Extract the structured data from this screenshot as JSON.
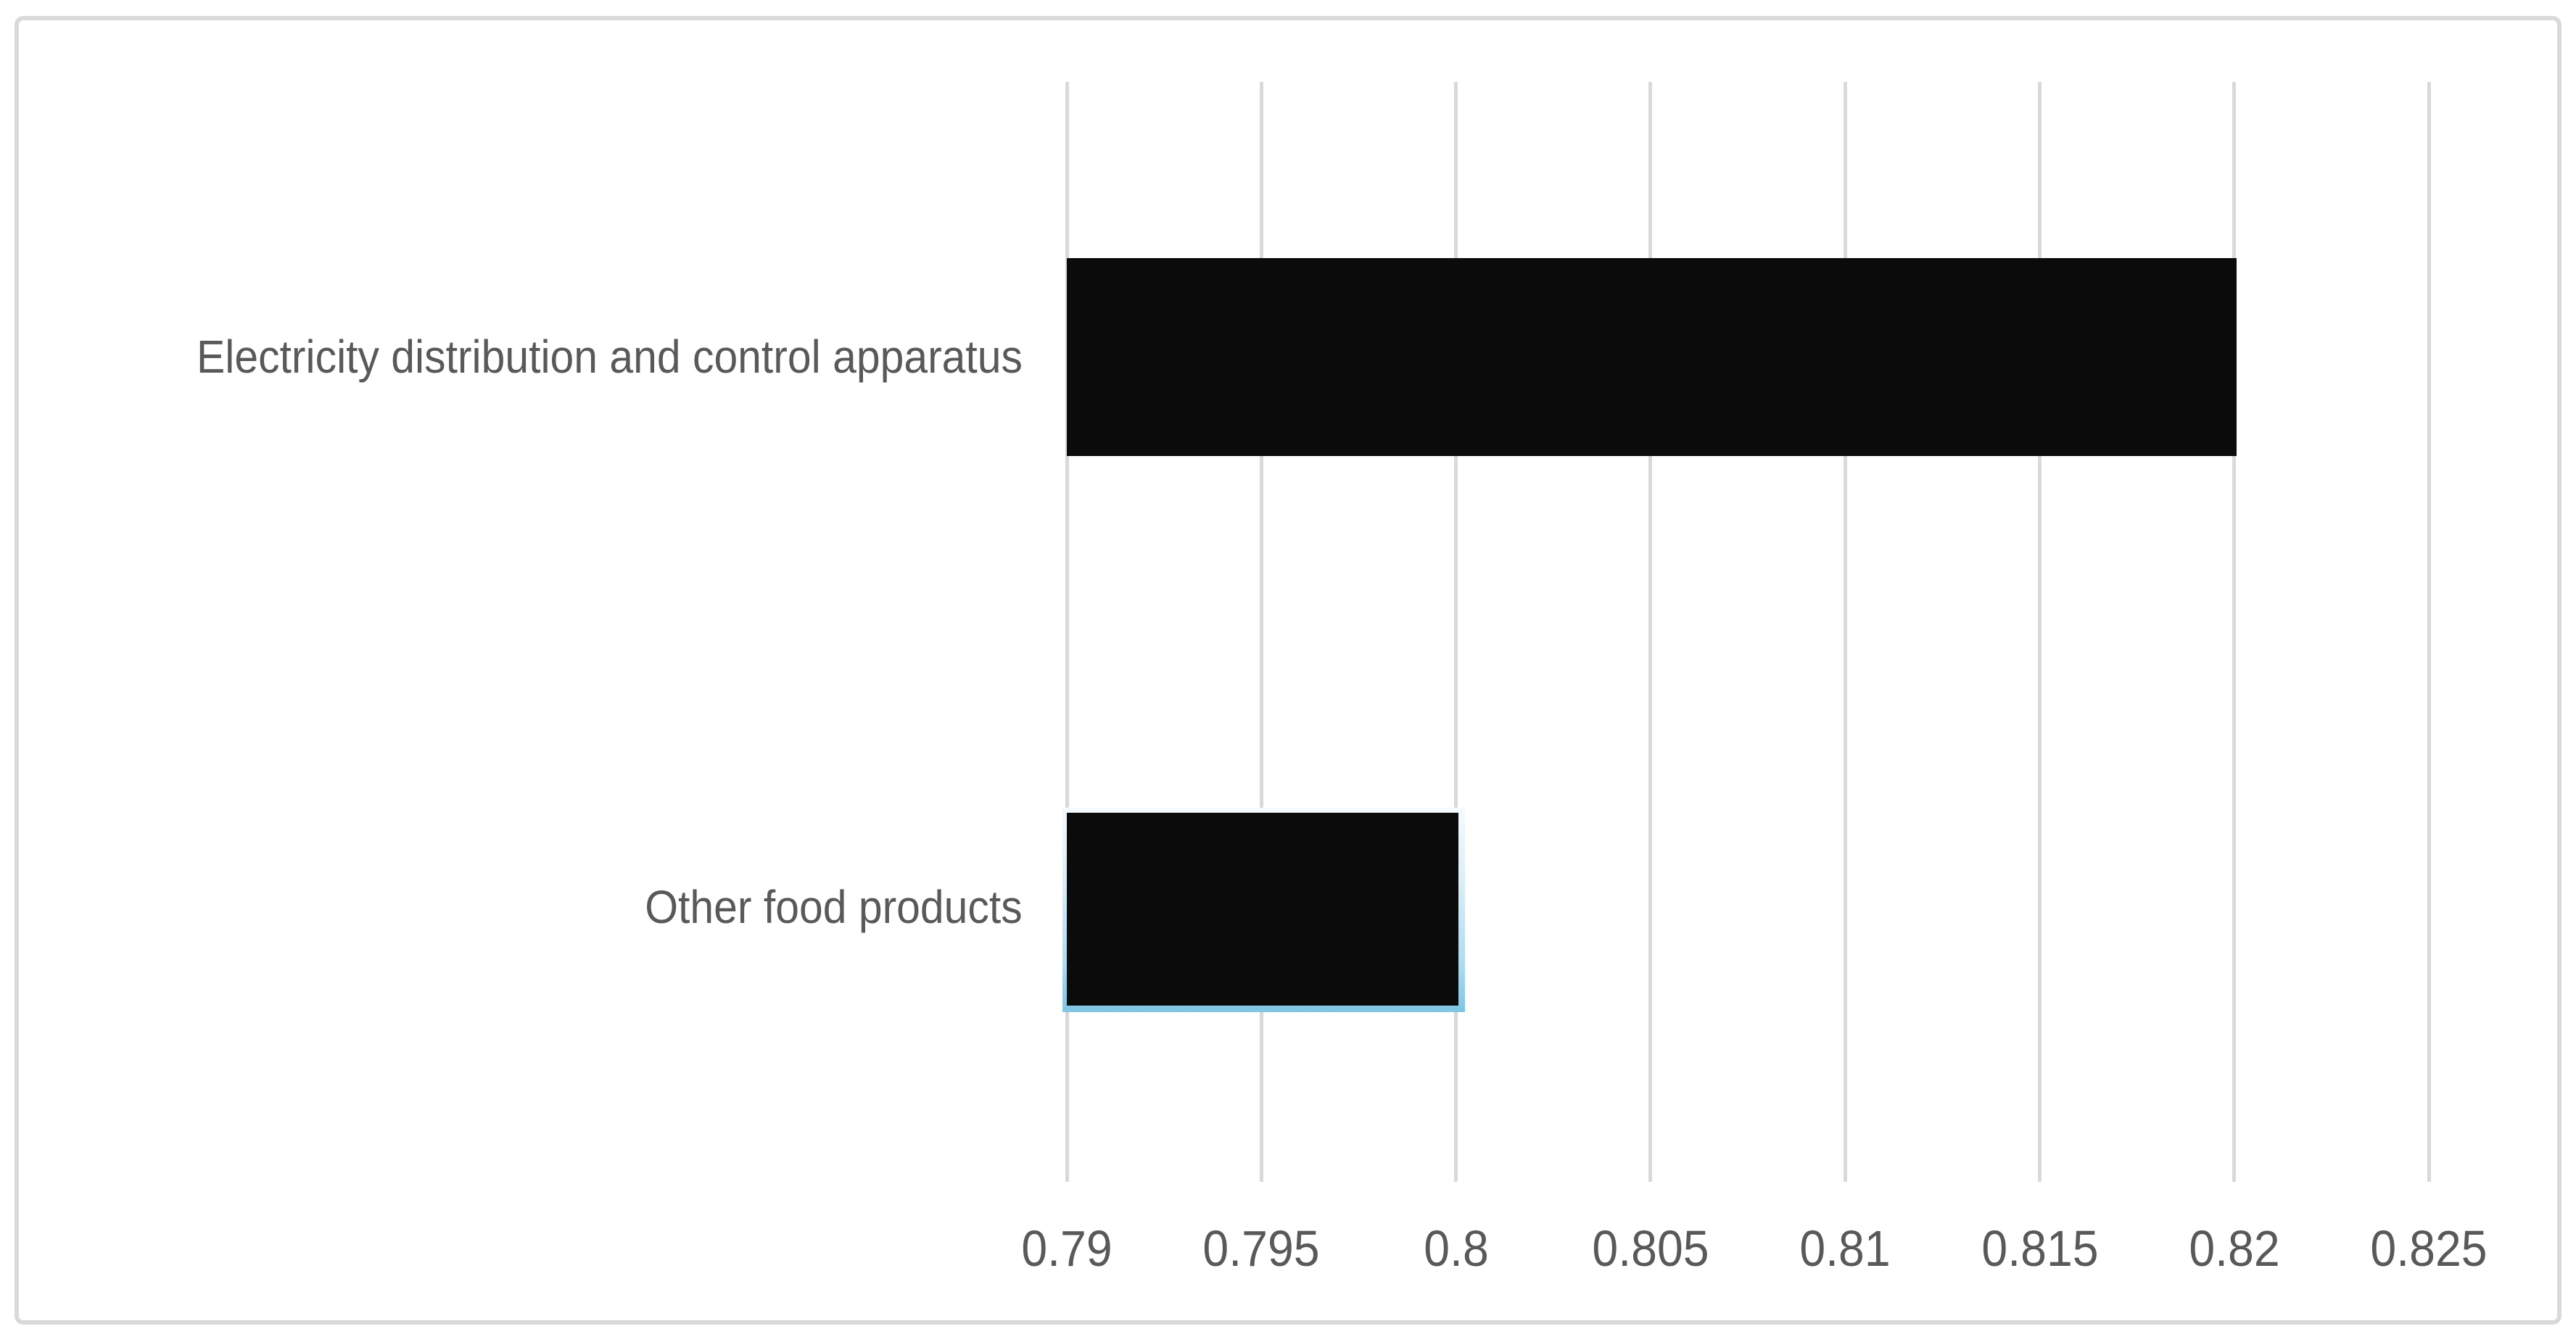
{
  "chart_data": {
    "type": "bar",
    "orientation": "horizontal",
    "title": "",
    "xlabel": "",
    "ylabel": "",
    "categories": [
      "Electricity distribution and control apparatus",
      "Other food products"
    ],
    "values": [
      0.82,
      0.8
    ],
    "x_ticks": [
      0.79,
      0.795,
      0.8,
      0.805,
      0.81,
      0.815,
      0.82,
      0.825
    ],
    "x_tick_labels": [
      "0.79",
      "0.795",
      "0.8",
      "0.805",
      "0.81",
      "0.815",
      "0.82",
      "0.825"
    ],
    "xlim": [
      0.79,
      0.8285
    ],
    "grid": "vertical-gridlines-on",
    "legend": "none",
    "bar_color": "#0B0B0B",
    "gridline_color": "#D9D9D9",
    "frame_border_color": "#D9D9D9",
    "axis_text_color": "#595959",
    "background_color": "#FFFFFF",
    "selection": {
      "selected_category_index": 1,
      "outline_top_color": "#F5FAFD",
      "outline_bottom_color": "#7FC5E4"
    }
  }
}
